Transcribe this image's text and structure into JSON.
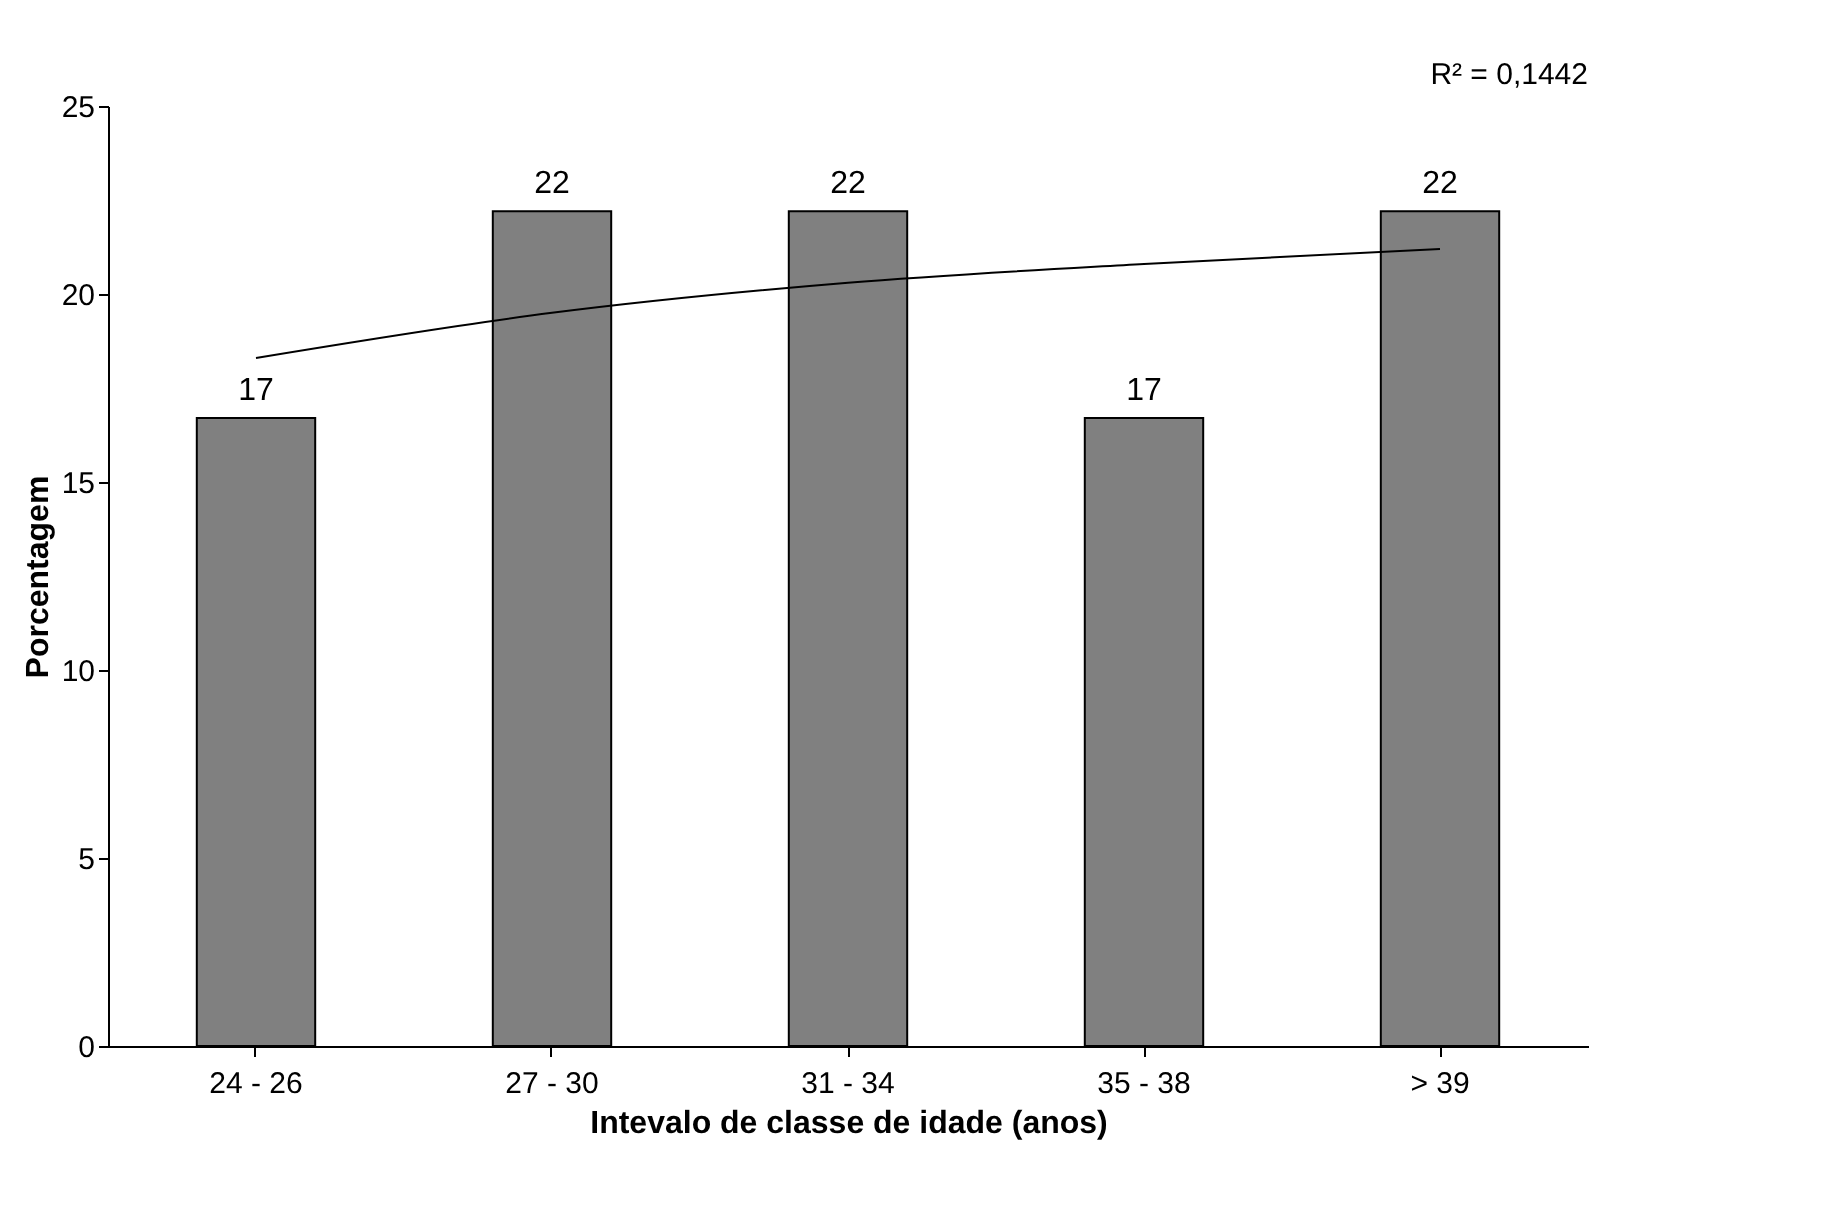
{
  "chart_data": {
    "type": "bar",
    "xlabel": "Intevalo de classe de idade (anos)",
    "ylabel": "Porcentagem",
    "categories": [
      "24 - 26",
      "27 - 30",
      "31 - 34",
      "35 - 38",
      "> 39"
    ],
    "series": [
      {
        "color": "#808080",
        "values": [
          16.7,
          22.2,
          22.2,
          16.7,
          22.2
        ],
        "value_labels": [
          "17",
          "22",
          "22",
          "17",
          "22"
        ]
      },
      {
        "type": "line",
        "color": "#000000",
        "x": [
          "24 - 26",
          "27 - 30",
          "31 - 34",
          "35 - 38",
          "> 39"
        ],
        "values": [
          18.3,
          19.5,
          20.3,
          20.8,
          21.2
        ]
      }
    ],
    "ylim": [
      0,
      25
    ],
    "yticks": [
      0,
      5,
      10,
      15,
      20,
      25
    ],
    "grid": false,
    "annotations": [
      "R² = 0,1442"
    ]
  }
}
